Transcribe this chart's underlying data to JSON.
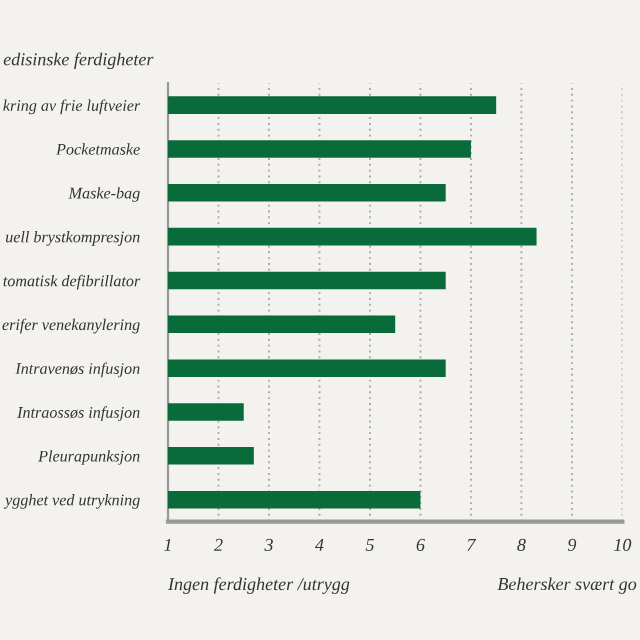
{
  "chart_data": {
    "type": "bar",
    "orientation": "horizontal",
    "title": "edisinske ferdigheter",
    "categories": [
      "kring av frie luftveier",
      "Pocketmaske",
      "Maske-bag",
      "uell brystkompresjon",
      "tomatisk defibrillator",
      "erifer venekanylering",
      "Intravenøs infusjon",
      "Intraossøs infusjon",
      "Pleurapunksjon",
      "ygghet ved utrykning"
    ],
    "values": [
      7.5,
      7.0,
      6.5,
      8.3,
      6.5,
      5.5,
      6.5,
      2.5,
      2.7,
      6.0
    ],
    "color": "#0a6b3a",
    "xlim": [
      1,
      10
    ],
    "xticks": [
      1,
      2,
      3,
      4,
      5,
      6,
      7,
      8,
      9,
      10
    ],
    "grid": "x",
    "annotations": [
      "Ingen ferdigheter /utrygg",
      "Behersker svært go"
    ]
  }
}
